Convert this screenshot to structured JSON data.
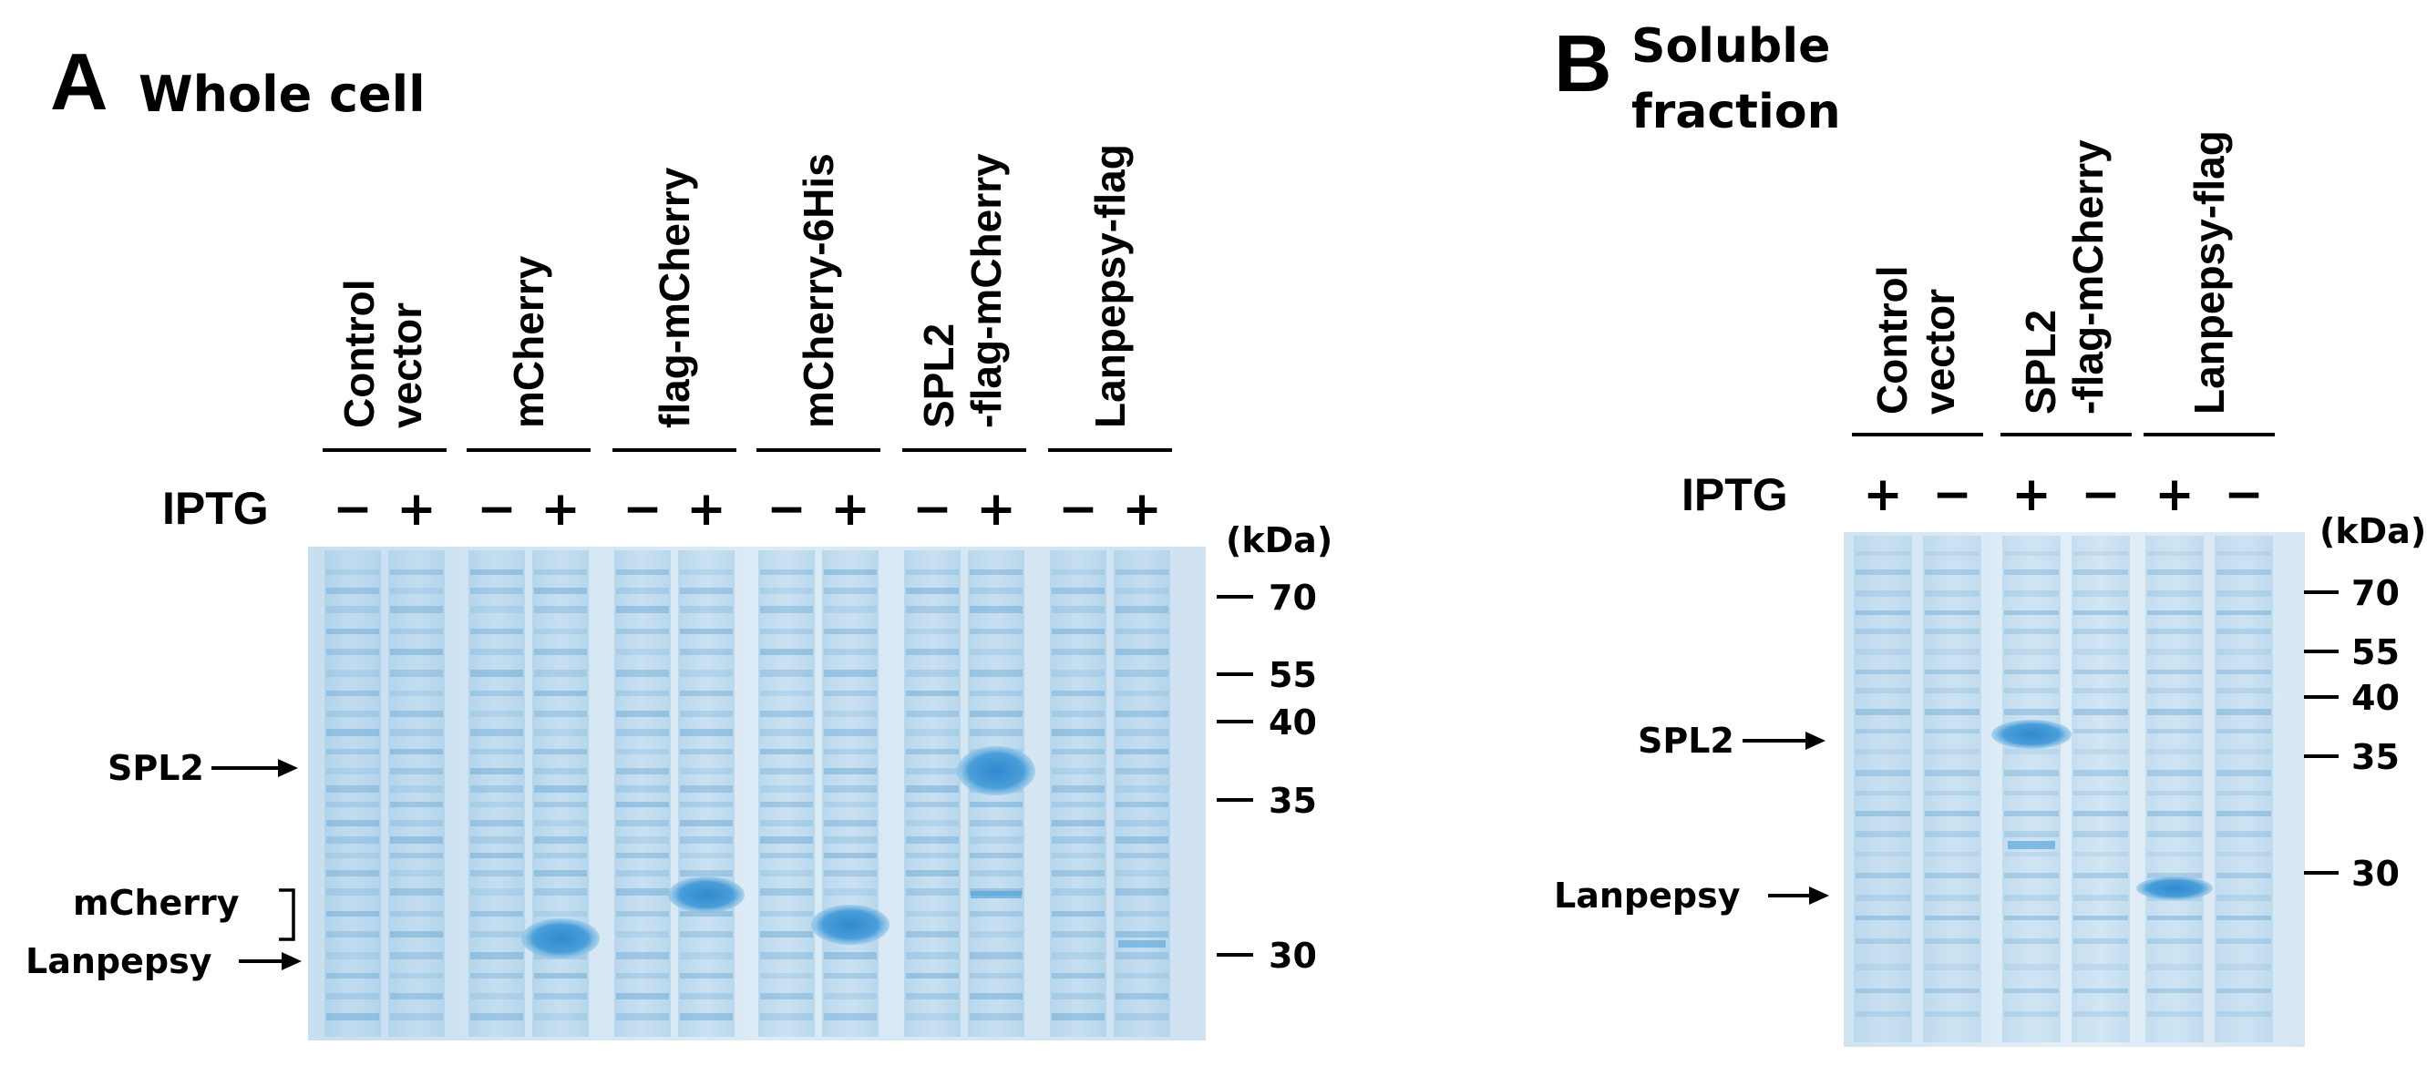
{
  "panel_a": {
    "letter": "A",
    "title": "Whole cell",
    "lanes": [
      {
        "line1": "Control",
        "line2": "vector"
      },
      {
        "line1": "mCherry",
        "line2": ""
      },
      {
        "line1": "flag-mCherry",
        "line2": ""
      },
      {
        "line1": "mCherry-6His",
        "line2": ""
      },
      {
        "line1": "SPL2",
        "line2": "-flag-mCherry"
      },
      {
        "line1": "Lanpepsy-flag",
        "line2": ""
      }
    ],
    "iptg_label": "IPTG",
    "iptg_signs": [
      "−",
      "+",
      "−",
      "+",
      "−",
      "+",
      "−",
      "+",
      "−",
      "+",
      "−",
      "+"
    ],
    "kda_label": "(kDa)",
    "markers": [
      "70",
      "55",
      "40",
      "35",
      "30"
    ],
    "band_labels": {
      "spl2": "SPL2",
      "mcherry": "mCherry",
      "lanpepsy": "Lanpepsy"
    }
  },
  "panel_b": {
    "letter": "B",
    "title_line1": "Soluble",
    "title_line2": "fraction",
    "lanes": [
      {
        "line1": "Control",
        "line2": "vector"
      },
      {
        "line1": "SPL2",
        "line2": "-flag-mCherry"
      },
      {
        "line1": "Lanpepsy-flag",
        "line2": ""
      }
    ],
    "iptg_label": "IPTG",
    "iptg_signs": [
      "+",
      "−",
      "+",
      "−",
      "+",
      "−"
    ],
    "kda_label": "(kDa)",
    "markers": [
      "70",
      "55",
      "40",
      "35",
      "30"
    ],
    "band_labels": {
      "spl2": "SPL2",
      "lanpepsy": "Lanpepsy"
    }
  },
  "colors": {
    "gel_base": "#d9e9f3",
    "band": "#7fb6dc",
    "strong_band": "#3f95d3"
  }
}
